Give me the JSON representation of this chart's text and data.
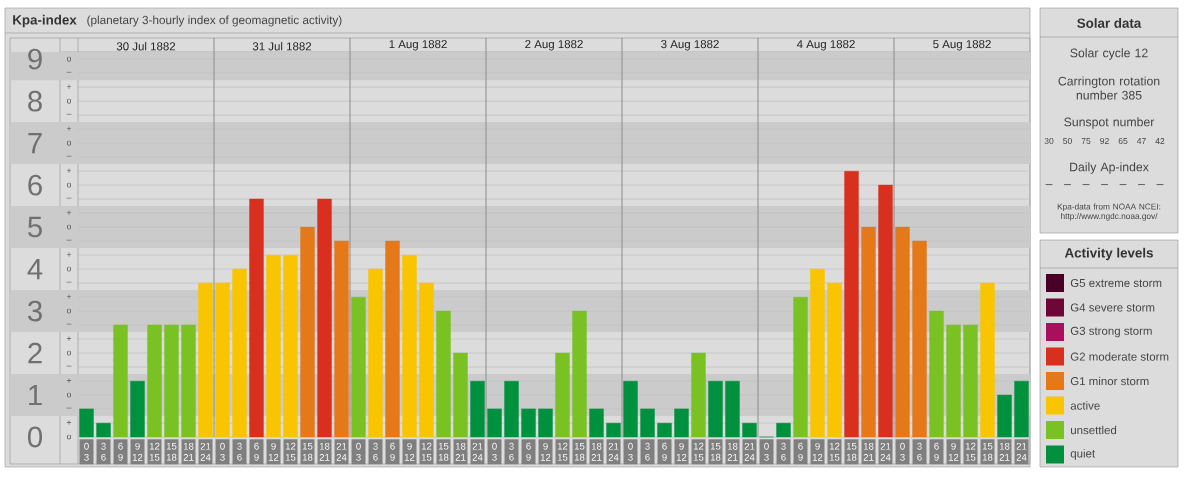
{
  "chart_data": [
    {
      "type": "bar",
      "title": "Kpa-index",
      "subtitle": "(planetary 3-hourly index of geomagnetic activity)",
      "categories": [
        "0 3",
        "3 6",
        "6 9",
        "9 12",
        "12 15",
        "15 18",
        "18 21",
        "21 24",
        "0 3",
        "3 6",
        "6 9",
        "9 12",
        "12 15",
        "15 18",
        "18 21",
        "21 24",
        "0 3",
        "3 6",
        "6 9",
        "9 12",
        "12 15",
        "15 18",
        "18 21",
        "21 24",
        "0 3",
        "3 6",
        "6 9",
        "9 12",
        "12 15",
        "15 18",
        "18 21",
        "21 24",
        "0 3",
        "3 6",
        "6 9",
        "9 12",
        "12 15",
        "15 18",
        "18 21",
        "21 24",
        "0 3",
        "3 6",
        "6 9",
        "9 12",
        "12 15",
        "15 18",
        "18 21",
        "21 24",
        "0 3",
        "3 6",
        "6 9",
        "9 12",
        "12 15",
        "15 18",
        "18 21",
        "21 24"
      ],
      "series": [
        {
          "name": "G5 extreme storm",
          "color": "#4a0026",
          "values": [
            null,
            null,
            null,
            null,
            null,
            null,
            null,
            null,
            null,
            null,
            null,
            null,
            null,
            null,
            null,
            null,
            null,
            null,
            null,
            null,
            null,
            null,
            null,
            null,
            null,
            null,
            null,
            null,
            null,
            null,
            null,
            null,
            null,
            null,
            null,
            null,
            null,
            null,
            null,
            null,
            null,
            null,
            null,
            null,
            null,
            null,
            null,
            null,
            null,
            null,
            null,
            null,
            null,
            null,
            null,
            null
          ]
        },
        {
          "name": "G4 severe storm",
          "color": "#6e0638",
          "values": [
            null,
            null,
            null,
            null,
            null,
            null,
            null,
            null,
            null,
            null,
            null,
            null,
            null,
            null,
            null,
            null,
            null,
            null,
            null,
            null,
            null,
            null,
            null,
            null,
            null,
            null,
            null,
            null,
            null,
            null,
            null,
            null,
            null,
            null,
            null,
            null,
            null,
            null,
            null,
            null,
            null,
            null,
            null,
            null,
            null,
            null,
            null,
            null,
            null,
            null,
            null,
            null,
            null,
            null,
            null,
            null
          ]
        },
        {
          "name": "G3 strong storm",
          "color": "#a8105e",
          "values": [
            null,
            null,
            null,
            null,
            null,
            null,
            null,
            null,
            null,
            null,
            null,
            null,
            null,
            null,
            null,
            null,
            null,
            null,
            null,
            null,
            null,
            null,
            null,
            null,
            null,
            null,
            null,
            null,
            null,
            null,
            null,
            null,
            null,
            null,
            null,
            null,
            null,
            null,
            null,
            null,
            null,
            null,
            null,
            null,
            null,
            null,
            null,
            null,
            null,
            null,
            null,
            null,
            null,
            null,
            null,
            null
          ]
        },
        {
          "name": "G2 moderate storm",
          "color": "#d82f1e",
          "values": [
            null,
            null,
            null,
            null,
            null,
            null,
            null,
            null,
            null,
            null,
            5.67,
            null,
            null,
            null,
            5.67,
            null,
            null,
            null,
            null,
            null,
            null,
            null,
            null,
            null,
            null,
            null,
            null,
            null,
            null,
            null,
            null,
            null,
            null,
            null,
            null,
            null,
            null,
            null,
            null,
            null,
            null,
            null,
            null,
            null,
            null,
            6.33,
            null,
            6,
            null,
            null,
            null,
            null,
            null,
            null,
            null,
            null
          ]
        },
        {
          "name": "G1 minor storm",
          "color": "#e57818",
          "values": [
            null,
            null,
            null,
            null,
            null,
            null,
            null,
            null,
            null,
            null,
            null,
            null,
            null,
            5,
            null,
            4.67,
            null,
            null,
            4.67,
            null,
            null,
            null,
            null,
            null,
            null,
            null,
            null,
            null,
            null,
            null,
            null,
            null,
            null,
            null,
            null,
            null,
            null,
            null,
            null,
            null,
            null,
            null,
            null,
            null,
            null,
            null,
            5,
            null,
            5,
            4.67,
            null,
            null,
            null,
            null,
            null,
            null
          ]
        },
        {
          "name": "active",
          "color": "#f9c500",
          "values": [
            null,
            null,
            null,
            null,
            null,
            null,
            null,
            3.67,
            3.67,
            4,
            null,
            4.33,
            4.33,
            null,
            null,
            null,
            null,
            4,
            null,
            4.33,
            3.67,
            null,
            null,
            null,
            null,
            null,
            null,
            null,
            null,
            null,
            null,
            null,
            null,
            null,
            null,
            null,
            null,
            null,
            null,
            null,
            null,
            null,
            null,
            4,
            3.67,
            null,
            null,
            null,
            null,
            null,
            null,
            null,
            null,
            3.67,
            null,
            null
          ]
        },
        {
          "name": "unsettled",
          "color": "#7ac124",
          "values": [
            null,
            null,
            2.67,
            null,
            2.67,
            2.67,
            2.67,
            null,
            null,
            null,
            null,
            null,
            null,
            null,
            null,
            null,
            3.33,
            null,
            null,
            null,
            null,
            3,
            2,
            null,
            null,
            null,
            null,
            null,
            2,
            3,
            null,
            null,
            null,
            null,
            null,
            null,
            2,
            null,
            null,
            null,
            null,
            null,
            3.33,
            null,
            null,
            null,
            null,
            null,
            null,
            null,
            3,
            2.67,
            2.67,
            null,
            null,
            null
          ]
        },
        {
          "name": "quiet",
          "color": "#00913f",
          "values": [
            0.67,
            0.33,
            null,
            1.33,
            null,
            null,
            null,
            null,
            null,
            null,
            null,
            null,
            null,
            null,
            null,
            null,
            null,
            null,
            null,
            null,
            null,
            null,
            null,
            1.33,
            0.67,
            1.33,
            0.67,
            0.67,
            null,
            null,
            0.67,
            0.33,
            1.33,
            0.67,
            0.33,
            0.67,
            null,
            1.33,
            1.33,
            0.33,
            0,
            0.33,
            null,
            null,
            null,
            null,
            null,
            null,
            null,
            null,
            null,
            null,
            null,
            null,
            1,
            1.33
          ]
        }
      ],
      "ylim": [
        0,
        9.17
      ],
      "yticks": [
        0,
        1,
        2,
        3,
        4,
        5,
        6,
        7,
        8,
        9
      ],
      "y2_categories": [
        "o",
        "–",
        "+",
        "o",
        "–",
        "+",
        "o",
        "–",
        "+",
        "o",
        "–",
        "+",
        "o",
        "–",
        "+",
        "o",
        "–",
        "+",
        "o",
        "–",
        "+",
        "o",
        "–",
        "+",
        "o",
        "–",
        "+",
        "o"
      ],
      "annotations": [
        "30 Jul 1882",
        "31 Jul 1882",
        "1 Aug 1882",
        "2 Aug 1882",
        "3 Aug 1882",
        "4 Aug 1882",
        "5 Aug 1882"
      ],
      "bands": [
        {
          "axis": "y",
          "from": 0.5,
          "to": 1.5,
          "color": "#cbcbcb"
        },
        {
          "axis": "y",
          "from": 2.5,
          "to": 3.5,
          "color": "#cbcbcb"
        },
        {
          "axis": "y",
          "from": 4.5,
          "to": 5.5,
          "color": "#cbcbcb"
        },
        {
          "axis": "y",
          "from": 6.5,
          "to": 7.5,
          "color": "#cbcbcb"
        },
        {
          "axis": "y",
          "from": 8.5,
          "to": 9.17,
          "color": "#cbcbcb"
        }
      ],
      "grid": "y",
      "legend": "right",
      "legend_title": "Activity levels"
    },
    {
      "type": "other",
      "title": "Solar data",
      "annotations": [
        "Solar cycle 12",
        "Carrington rotation number 385",
        "Sunspot number",
        "30",
        "50",
        "75",
        "92",
        "65",
        "47",
        "42",
        "Daily Ap-index",
        "–",
        "–",
        "–",
        "–",
        "–",
        "–",
        "–",
        "Kpa-data from NOAA NCEI: http://www.ngdc.noaa.gov/"
      ]
    }
  ]
}
